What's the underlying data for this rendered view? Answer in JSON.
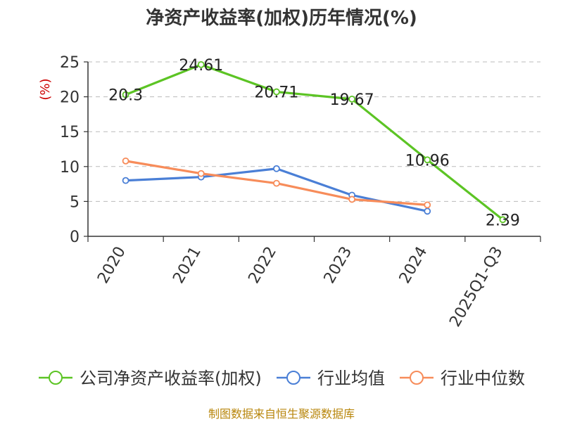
{
  "chart_data": {
    "type": "line",
    "title": "净资产收益率(加权)历年情况(%)",
    "ylabel": "(%)",
    "xlabel": "",
    "categories": [
      "2020",
      "2021",
      "2022",
      "2023",
      "2024",
      "2025Q1-Q3"
    ],
    "ylim": [
      0,
      25
    ],
    "yticks": [
      0,
      5,
      10,
      15,
      20,
      25
    ],
    "grid": true,
    "legend_position": "bottom",
    "series": [
      {
        "name": "公司净资产收益率(加权)",
        "color": "#5cc424",
        "values": [
          20.3,
          24.61,
          20.71,
          19.67,
          10.96,
          2.39
        ],
        "labels": [
          "20.3",
          "24.61",
          "20.71",
          "19.67",
          "10.96",
          "2.39"
        ]
      },
      {
        "name": "行业均值",
        "color": "#4a7fd6",
        "values": [
          8.0,
          8.5,
          9.7,
          5.9,
          3.6,
          null
        ]
      },
      {
        "name": "行业中位数",
        "color": "#f78c5a",
        "values": [
          10.8,
          9.0,
          7.6,
          5.3,
          4.5,
          null
        ]
      }
    ],
    "source": "制图数据来自恒生聚源数据库"
  }
}
